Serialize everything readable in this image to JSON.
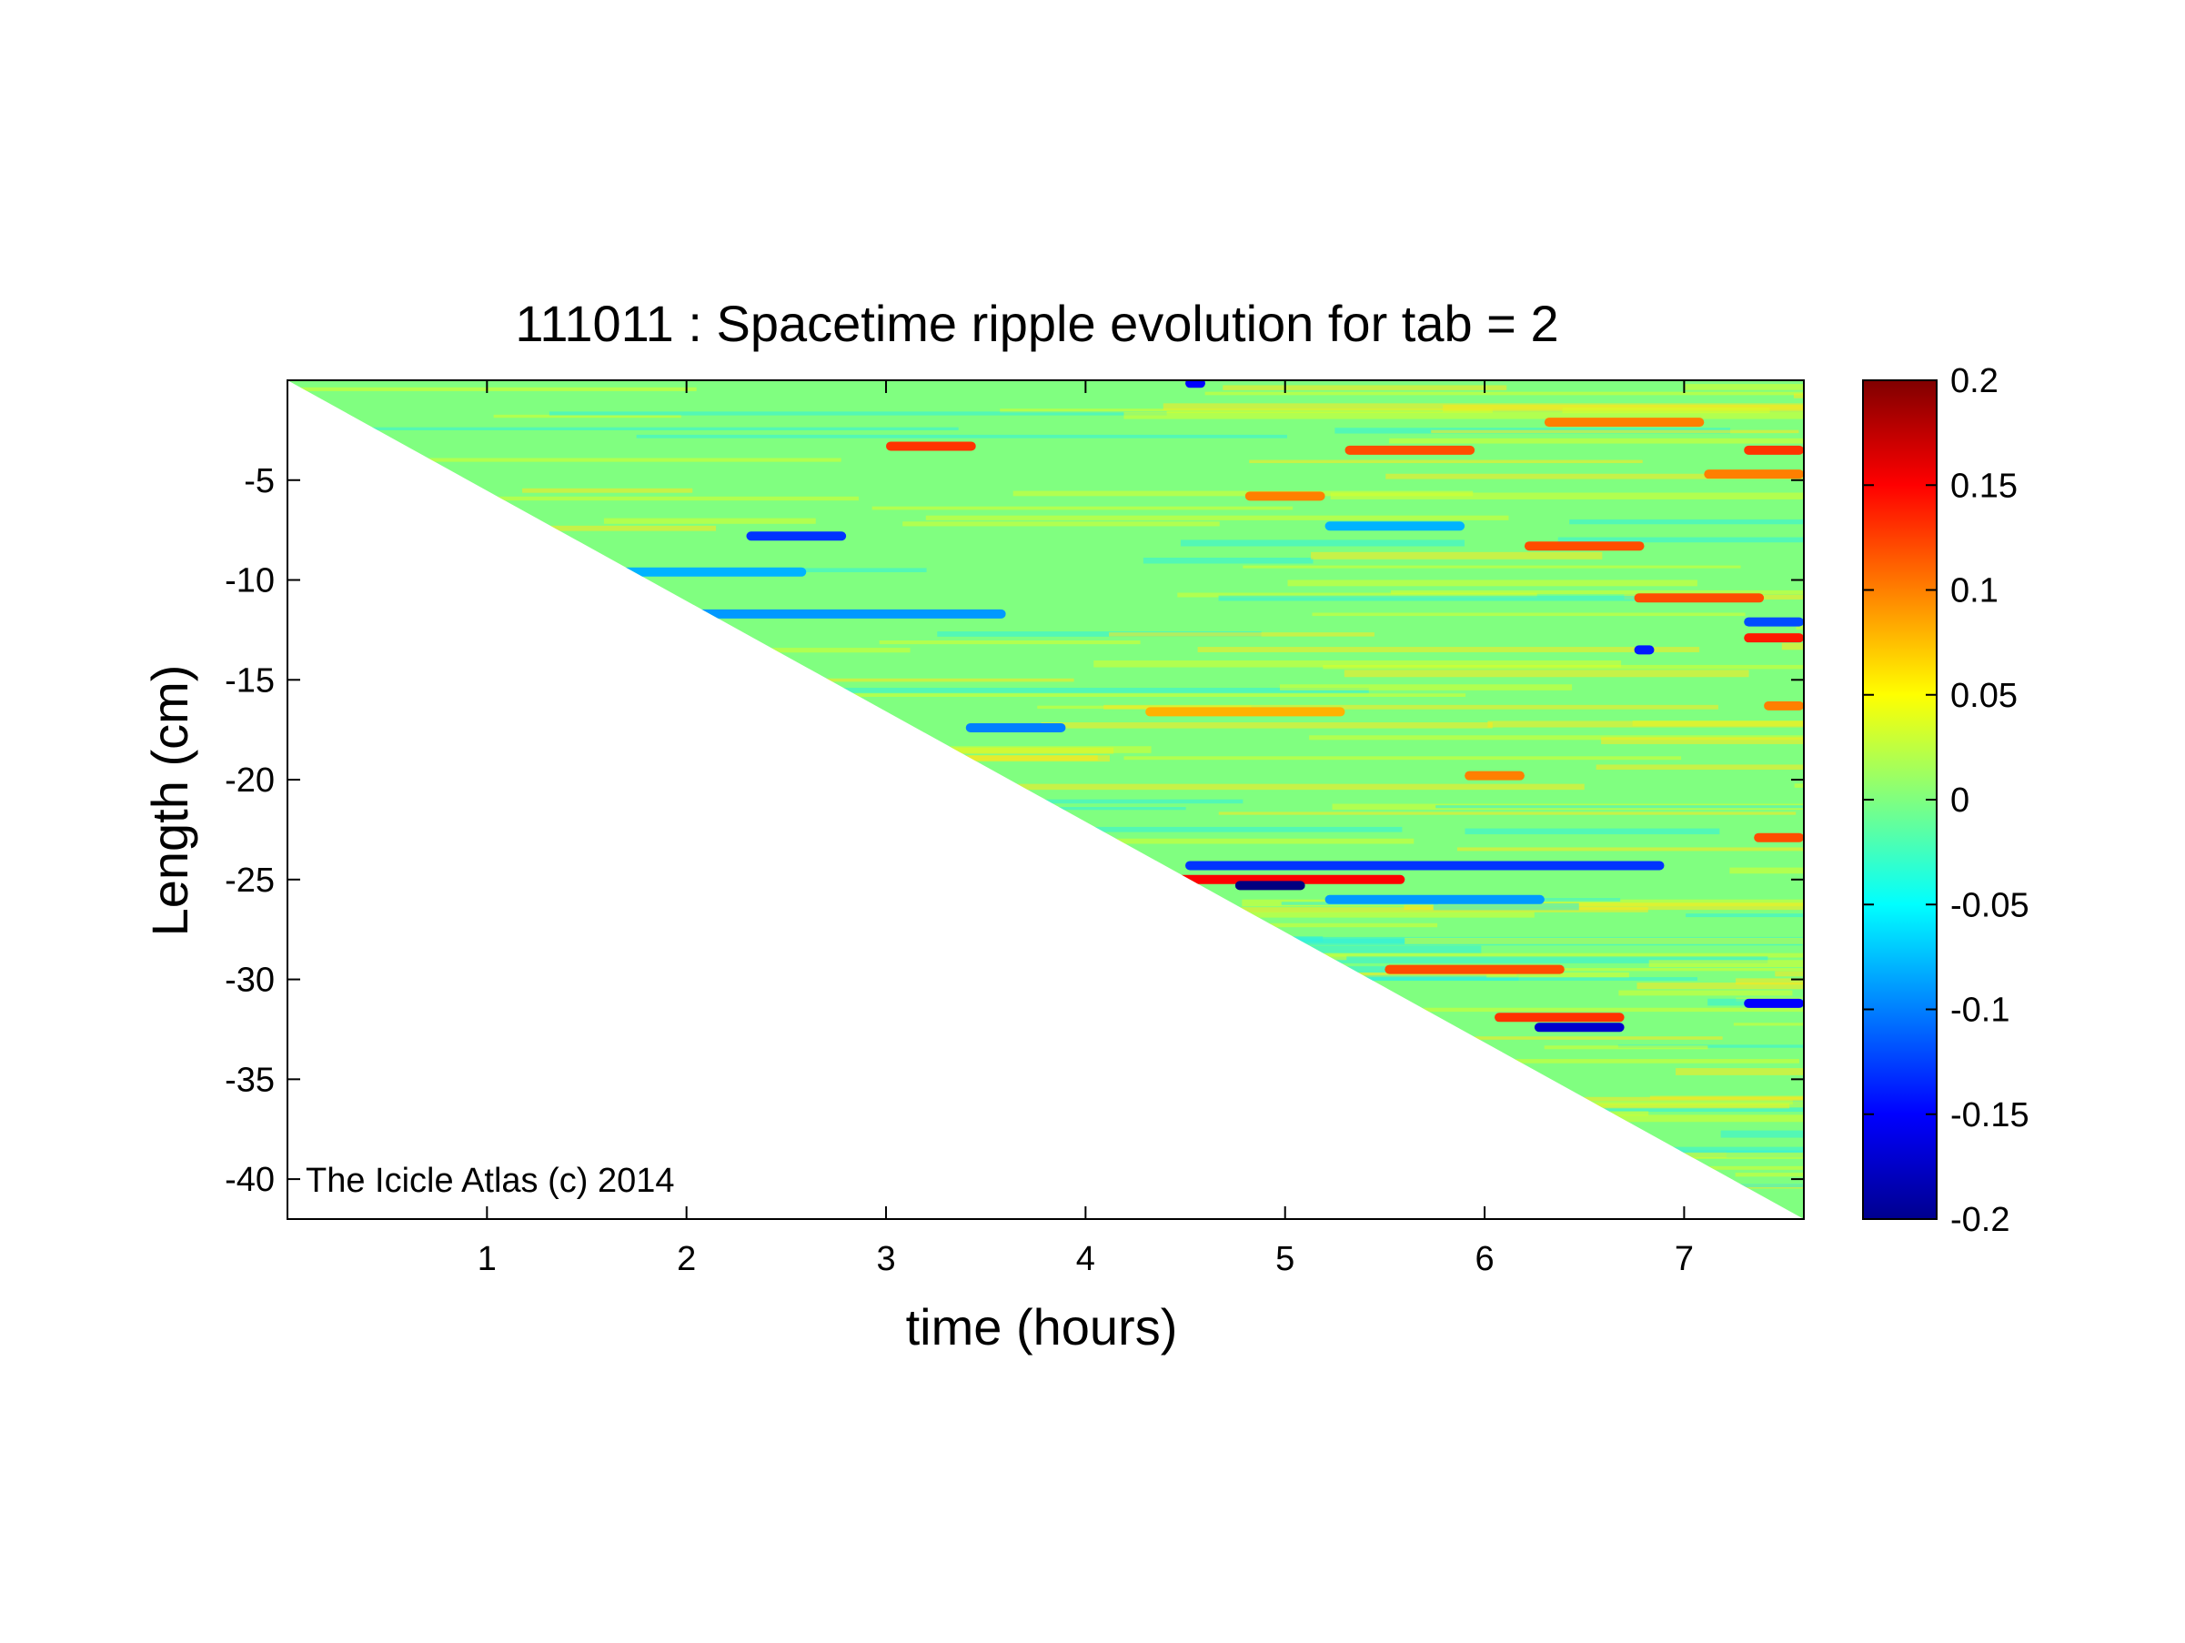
{
  "chart_data": {
    "type": "heatmap",
    "title": "111011 : Spacetime ripple evolution for tab = 2",
    "xlabel": "time (hours)",
    "ylabel": "Length (cm)",
    "xlim": [
      0,
      7.6
    ],
    "ylim": [
      -42,
      0
    ],
    "x_ticks": [
      1,
      2,
      3,
      4,
      5,
      6,
      7
    ],
    "x_tick_labels": [
      "1",
      "2",
      "3",
      "4",
      "5",
      "6",
      "7"
    ],
    "y_ticks": [
      -5,
      -10,
      -15,
      -20,
      -25,
      -30,
      -35,
      -40
    ],
    "y_tick_labels": [
      "-5",
      "-10",
      "-15",
      "-20",
      "-25",
      "-30",
      "-35",
      "-40"
    ],
    "colorbar": {
      "colormap": "jet",
      "clim": [
        -0.2,
        0.2
      ],
      "ticks": [
        0.2,
        0.15,
        0.1,
        0.05,
        0,
        -0.05,
        -0.1,
        -0.15,
        -0.2
      ],
      "tick_labels": [
        "0.2",
        "0.15",
        "0.1",
        "0.05",
        "0",
        "-0.05",
        "-0.1",
        "-0.15",
        "-0.2"
      ]
    },
    "growth_front": {
      "from": [
        0,
        0
      ],
      "to": [
        7.6,
        -42
      ]
    },
    "background_value": 0,
    "features": [
      {
        "t0": 3.0,
        "t1": 3.45,
        "y": -3.3,
        "value": 0.13
      },
      {
        "t0": 5.3,
        "t1": 5.95,
        "y": -3.5,
        "value": 0.12
      },
      {
        "t0": 6.3,
        "t1": 7.1,
        "y": -2.1,
        "value": 0.1
      },
      {
        "t0": 7.3,
        "t1": 7.6,
        "y": -3.5,
        "value": 0.13
      },
      {
        "t0": 7.1,
        "t1": 7.6,
        "y": -4.7,
        "value": 0.1
      },
      {
        "t0": 2.3,
        "t1": 2.8,
        "y": -7.8,
        "value": -0.13
      },
      {
        "t0": 5.2,
        "t1": 5.9,
        "y": -7.3,
        "value": -0.08
      },
      {
        "t0": 6.2,
        "t1": 6.8,
        "y": -8.3,
        "value": 0.12
      },
      {
        "t0": 4.8,
        "t1": 5.2,
        "y": -5.8,
        "value": 0.1
      },
      {
        "t0": 6.75,
        "t1": 7.4,
        "y": -10.9,
        "value": 0.12
      },
      {
        "t0": 6.75,
        "t1": 6.85,
        "y": -13.5,
        "value": -0.14
      },
      {
        "t0": 7.3,
        "t1": 7.6,
        "y": -12.9,
        "value": 0.14
      },
      {
        "t0": 7.3,
        "t1": 7.6,
        "y": -12.1,
        "value": -0.12
      },
      {
        "t0": 2.0,
        "t1": 3.6,
        "y": -11.7,
        "value": -0.09
      },
      {
        "t0": 1.5,
        "t1": 2.6,
        "y": -9.6,
        "value": -0.08
      },
      {
        "t0": 4.3,
        "t1": 5.3,
        "y": -16.6,
        "value": 0.08
      },
      {
        "t0": 3.4,
        "t1": 3.9,
        "y": -17.4,
        "value": -0.1
      },
      {
        "t0": 5.9,
        "t1": 6.2,
        "y": -19.8,
        "value": 0.1
      },
      {
        "t0": 4.5,
        "t1": 6.9,
        "y": -24.3,
        "value": -0.13
      },
      {
        "t0": 4.4,
        "t1": 5.6,
        "y": -25.0,
        "value": 0.15
      },
      {
        "t0": 4.75,
        "t1": 5.1,
        "y": -25.3,
        "value": -0.2
      },
      {
        "t0": 5.2,
        "t1": 6.3,
        "y": -26.0,
        "value": -0.09
      },
      {
        "t0": 5.5,
        "t1": 6.4,
        "y": -29.5,
        "value": 0.12
      },
      {
        "t0": 6.05,
        "t1": 6.7,
        "y": -31.9,
        "value": 0.13
      },
      {
        "t0": 6.25,
        "t1": 6.7,
        "y": -32.4,
        "value": -0.17
      },
      {
        "t0": 7.3,
        "t1": 7.6,
        "y": -31.2,
        "value": -0.15
      },
      {
        "t0": 7.35,
        "t1": 7.6,
        "y": -22.9,
        "value": 0.12
      },
      {
        "t0": 7.4,
        "t1": 7.6,
        "y": -16.3,
        "value": 0.1
      },
      {
        "t0": 4.5,
        "t1": 4.6,
        "y": -0.15,
        "value": -0.15
      }
    ],
    "annotation": "The Icicle Atlas (c) 2014"
  }
}
